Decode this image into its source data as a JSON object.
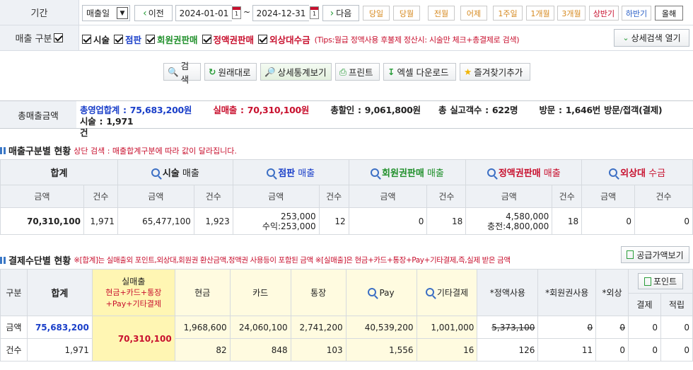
{
  "filter": {
    "period_label": "기간",
    "date_type": "매출일",
    "prev_label": "이전",
    "start_date": "2024-01-01",
    "tilde": "~",
    "end_date": "2024-12-31",
    "next_label": "다음",
    "quick": [
      "당일",
      "당월",
      "전월",
      "어제",
      "1주일",
      "1개월",
      "3개월",
      "상반기",
      "하반기",
      "올해"
    ],
    "type_label": "매출 구분",
    "types": [
      {
        "label": "시술",
        "color": "#222222"
      },
      {
        "label": "점판",
        "color": "#1a3fc9"
      },
      {
        "label": "회원권판매",
        "color": "#1f8f2a"
      },
      {
        "label": "정액권판매",
        "color": "#c8102e"
      },
      {
        "label": "외상대수금",
        "color": "#c8102e"
      }
    ],
    "tips": "(Tips:월급 정액사용 후불제 정산시: 시술만 체크+총결제로 검색)",
    "detail_search": "상세검색 열기"
  },
  "toolbar": {
    "search": "검색",
    "reset": "원래대로",
    "detail_stats": "상세통계보기",
    "print": "프린트",
    "excel": "엑셀 다운로드",
    "favorite": "즐겨찾기추가"
  },
  "summary": {
    "label": "총매출금액",
    "total_business": "총영업합계 : 75,683,200원",
    "actual_sales": "실매출 : 70,310,100원",
    "total_discount": "총할인 : 9,061,800원",
    "customers": "총 실고객수 : 622명",
    "visits": "방문 : 1,646번 방문/접객(결제)",
    "treatment": "시술 : 1,971",
    "treatment_unit": "건"
  },
  "sales_section": {
    "title": "매출구분별 현황",
    "note": "상단 검색 : 매출합계구분에 따라 값이 달라집니다.",
    "groups": [
      {
        "name": "합계",
        "suffix": "",
        "color": "#222222"
      },
      {
        "name": "시술",
        "suffix": " 매출",
        "color": "#222222"
      },
      {
        "name": "점판",
        "suffix": " 매출",
        "color": "#1a3fc9"
      },
      {
        "name": "회원권판매",
        "suffix": " 매출",
        "color": "#1f8f2a"
      },
      {
        "name": "정액권판매",
        "suffix": " 매출",
        "color": "#c8102e"
      },
      {
        "name": "외상대",
        "suffix": " 수금",
        "color": "#c8102e"
      }
    ],
    "sub_amount": "금액",
    "sub_count": "건수",
    "row": {
      "total_amount": "70,310,100",
      "total_count": "1,971",
      "treat_amount": "65,477,100",
      "treat_count": "1,923",
      "retail_amount": "253,000",
      "retail_sub": "수익:253,000",
      "retail_count": "12",
      "member_amount": "0",
      "member_count": "18",
      "prepaid_amount": "4,580,000",
      "prepaid_sub": "충전:4,800,000",
      "prepaid_count": "18",
      "credit_amount": "0",
      "credit_count": "0"
    }
  },
  "payment_section": {
    "title": "결제수단별 현황",
    "note": "※[합계]는 실매출외 포인트,외상대,회원권 환산금액,정액권 사용등이 포함된 금액 ※[실매출]은 현금+카드+통장+Pay+기타결제,즉,실제 받은 금액",
    "supply_button": "공급가액보기",
    "col_type": "구분",
    "col_total": "합계",
    "col_actual": "실매출",
    "col_actual_sub": "현금+카드+통장",
    "col_actual_sub2": "+Pay+기타결제",
    "col_cash": "현금",
    "col_card": "카드",
    "col_bank": "통장",
    "col_pay": "Pay",
    "col_etc": "기타결제",
    "col_prepaid": "*정액사용",
    "col_member": "*회원권사용",
    "col_credit": "*외상",
    "point_button": "포인트",
    "col_point_pay": "결제",
    "col_point_earn": "적립",
    "row_amount": {
      "label": "금액",
      "total": "75,683,200",
      "actual": "70,310,100",
      "cash": "1,968,600",
      "card": "24,060,100",
      "bank": "2,741,200",
      "pay": "40,539,200",
      "etc": "1,001,000",
      "prepaid": "5,373,100",
      "member": "0",
      "credit": "0",
      "point_pay": "0",
      "point_earn": "0"
    },
    "row_count": {
      "label": "건수",
      "total": "1,971",
      "cash": "82",
      "card": "848",
      "bank": "103",
      "pay": "1,556",
      "etc": "16",
      "prepaid": "126",
      "member": "11",
      "credit": "0",
      "point_pay": "0",
      "point_earn": "0"
    }
  }
}
